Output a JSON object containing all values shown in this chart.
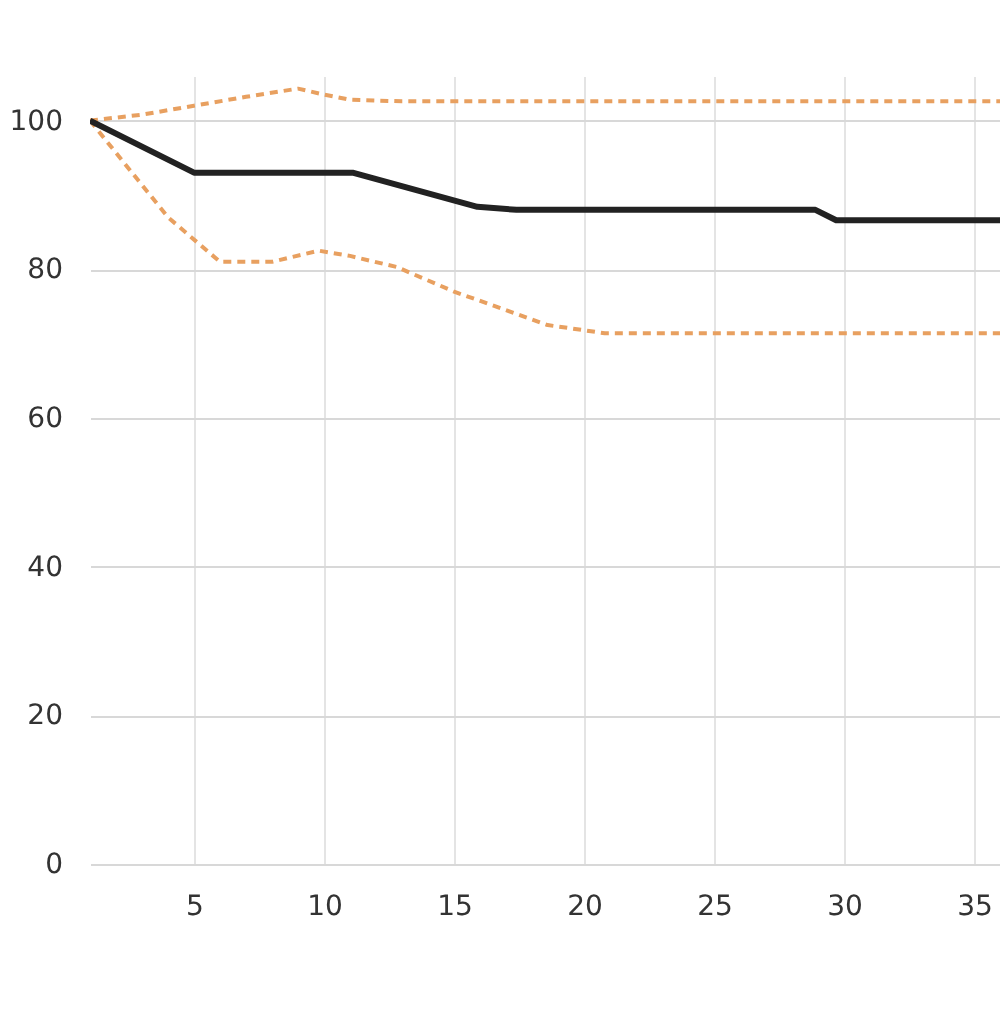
{
  "chart_data": {
    "type": "line",
    "xlim": [
      1,
      36
    ],
    "ylim": [
      0,
      106
    ],
    "xticks": [
      5,
      10,
      15,
      20,
      25,
      30,
      35
    ],
    "yticks": [
      0,
      20,
      40,
      60,
      80,
      100
    ],
    "grid": true,
    "series": [
      {
        "color": "#e8a060",
        "line_style": "dashed",
        "x": [
          1,
          3,
          5,
          7,
          9,
          10,
          11,
          13,
          36
        ],
        "values": [
          100,
          100.8,
          102,
          103.2,
          104.3,
          103.5,
          102.8,
          102.6,
          102.6
        ]
      },
      {
        "color": "#e8a060",
        "line_style": "dashed",
        "x": [
          1,
          4,
          6,
          8,
          9.8,
          11,
          12.8,
          15,
          17,
          18.6,
          20.8,
          36
        ],
        "values": [
          100,
          87,
          81,
          81,
          82.5,
          81.8,
          80.3,
          77,
          74.5,
          72.5,
          71.4,
          71.4
        ]
      },
      {
        "color": "#222222",
        "line_style": "solid",
        "x": [
          1,
          5,
          11.1,
          15.9,
          17.4,
          28.9,
          29.7,
          36
        ],
        "values": [
          100,
          93,
          93,
          88.4,
          88,
          88,
          86.6,
          86.6
        ]
      }
    ]
  }
}
